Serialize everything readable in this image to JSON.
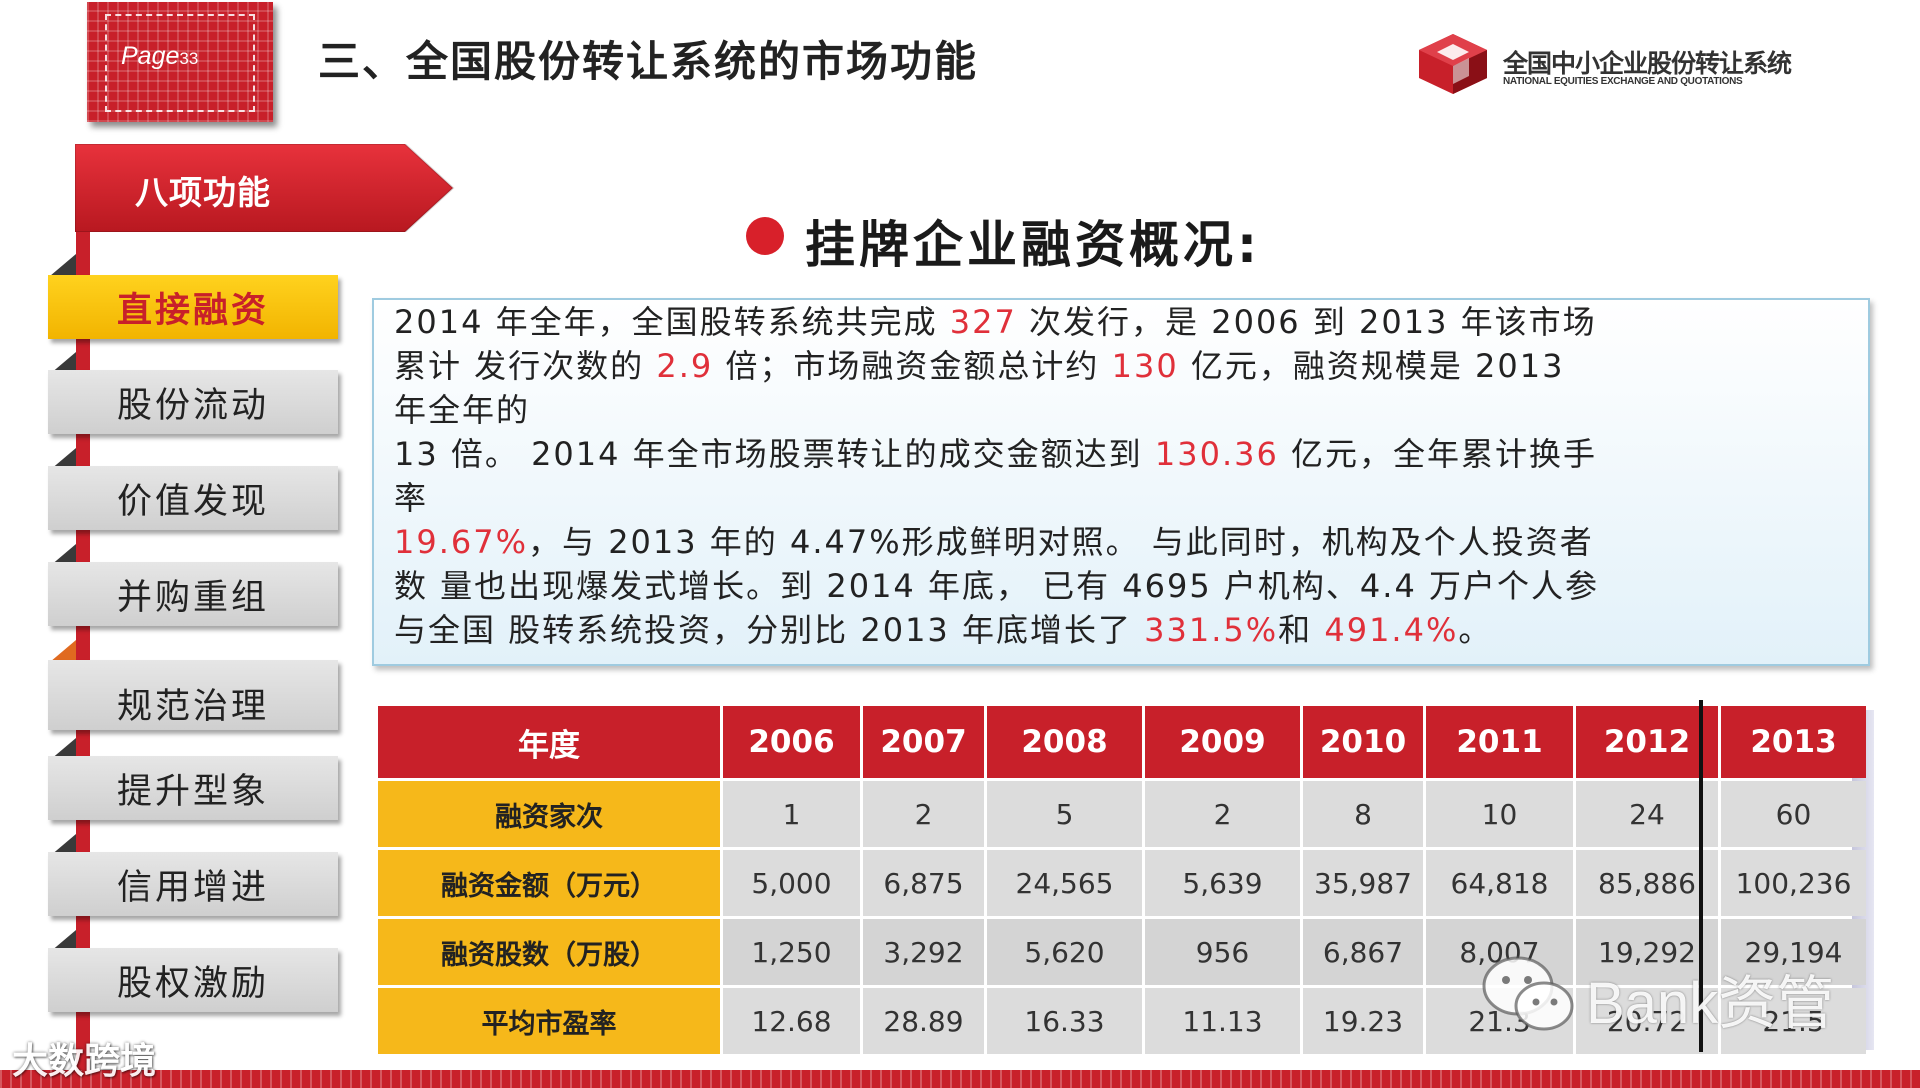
{
  "header": {
    "page_label": "Page",
    "page_number": "33",
    "title": "三、全国股份转让系统的市场功能"
  },
  "logo": {
    "cn": "全国中小企业股份转让系统",
    "en": "NATIONAL EQUITIES EXCHANGE AND QUOTATIONS",
    "colors": {
      "primary": "#c8202a",
      "dark": "#8a0f16"
    }
  },
  "sidebar": {
    "banner": "八项功能",
    "items": [
      {
        "label": "直接融资",
        "active": true
      },
      {
        "label": "股份流动",
        "active": false
      },
      {
        "label": "价值发现",
        "active": false
      },
      {
        "label": "并购重组",
        "active": false
      },
      {
        "label": "规范治理",
        "active": false
      },
      {
        "label": "提升型象",
        "active": false
      },
      {
        "label": "信用增进",
        "active": false
      },
      {
        "label": "股权激励",
        "active": false
      }
    ]
  },
  "section": {
    "heading": "挂牌企业融资概况:"
  },
  "summary": {
    "line1": {
      "a": "2014 年全年，全国股转系统共完成 ",
      "b": "327",
      "c": " 次发行，是 2006 到 2013 年该市场"
    },
    "line2": {
      "a": "累计  发行次数的 ",
      "b": "2.9",
      "c": " 倍；市场融资金额总计约 ",
      "d": "130",
      "e": " 亿元，融资规模是 2013"
    },
    "line3": "年全年的",
    "line4": {
      "a": "13 倍。 2014 年全市场股票转让的成交金额达到 ",
      "b": "130.36",
      "c": " 亿元，全年累计换手"
    },
    "line5": "率",
    "line6": {
      "a": "19.67%",
      "b": "，与 2013 年的 4.47%形成鲜明对照。  与此同时，机构及个人投资者"
    },
    "line7": "数  量也出现爆发式增长。到 2014 年底，  已有 4695 户机构、4.4 万户个人参",
    "line8": {
      "a": "与全国  股转系统投资，分别比 2013 年底增长了 ",
      "b": "331.5%",
      "c": "和 ",
      "d": "491.4%",
      "e": "。"
    }
  },
  "table": {
    "corner": "年度",
    "years": [
      "2006",
      "2007",
      "2008",
      "2009",
      "2010",
      "2011",
      "2012",
      "2013"
    ],
    "rows": [
      {
        "label": "融资家次",
        "values": [
          "1",
          "2",
          "5",
          "2",
          "8",
          "10",
          "24",
          "60"
        ]
      },
      {
        "label": "融资金额（万元）",
        "values": [
          "5,000",
          "6,875",
          "24,565",
          "5,639",
          "35,987",
          "64,818",
          "85,886",
          "100,236"
        ]
      },
      {
        "label": "融资股数（万股）",
        "values": [
          "1,250",
          "3,292",
          "5,620",
          "956",
          "6,867",
          "8,007",
          "19,292",
          "29,194"
        ]
      },
      {
        "label": "平均市盈率",
        "values": [
          "12.68",
          "28.89",
          "16.33",
          "11.13",
          "19.23",
          "21.3",
          "20.72",
          "21.5"
        ]
      }
    ]
  },
  "watermarks": {
    "left": "大数跨境",
    "right": "Bank资管"
  },
  "icons": {
    "bullet": "red-dot-bullet-icon",
    "logo": "neeq-cube-logo-icon",
    "wechat": "wechat-icon"
  }
}
